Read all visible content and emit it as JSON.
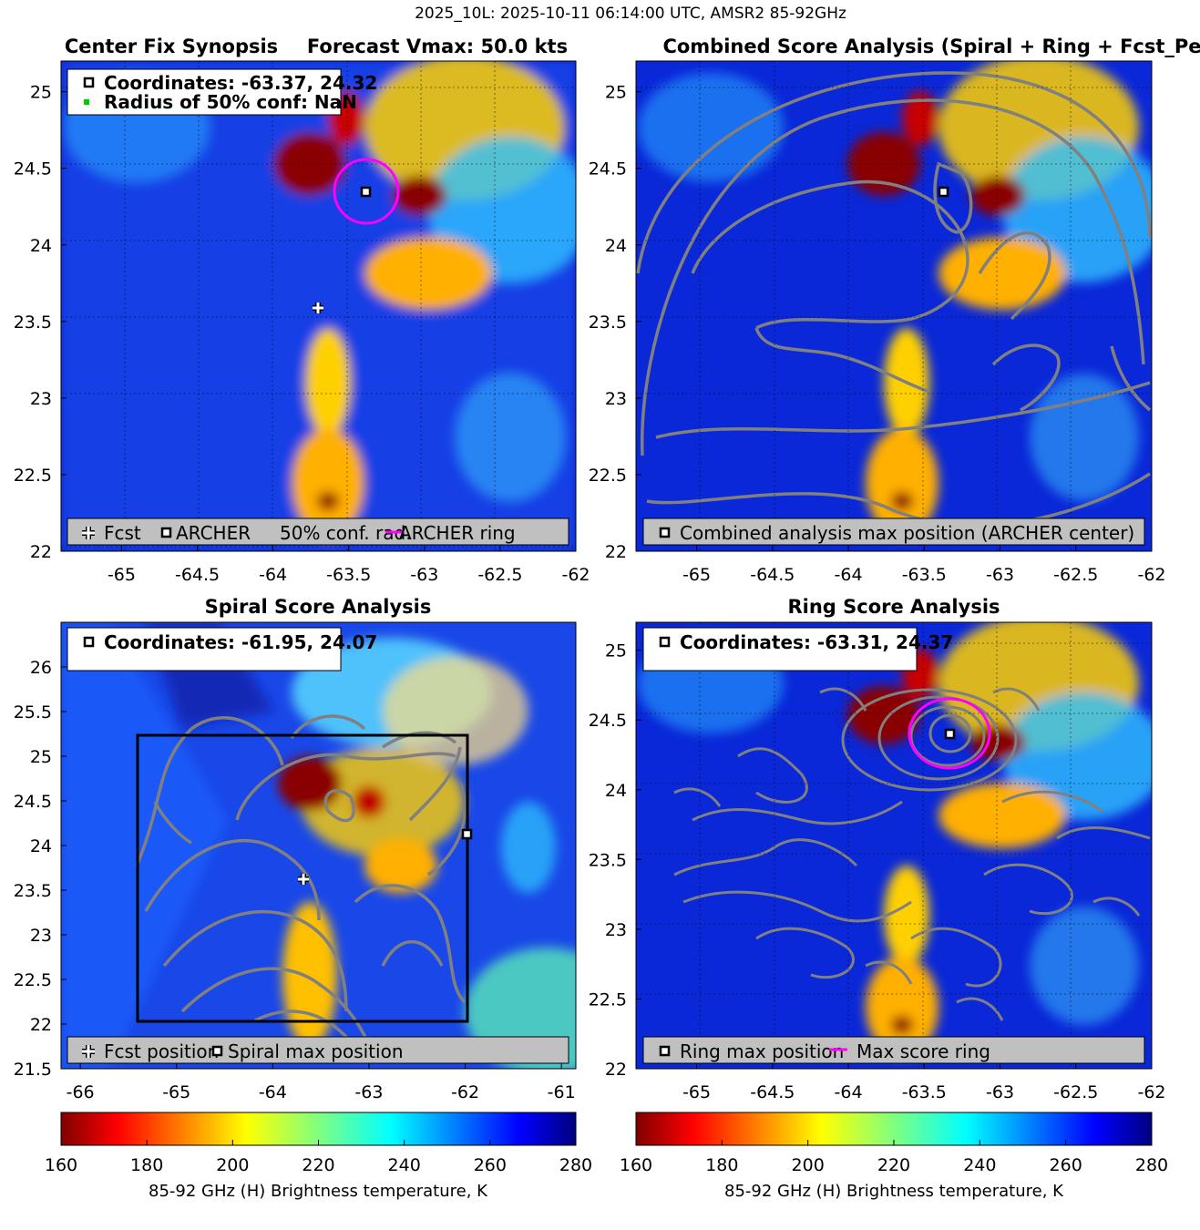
{
  "suptitle": "2025_10L: 2025-10-11 06:14:00 UTC, AMSR2 85-92GHz",
  "panels": [
    {
      "id": "synopsis",
      "title_left": "Center Fix Synopsis",
      "title_right": "Forecast Vmax: 50.0 kts",
      "info_lines": [
        "Coordinates: -63.37, 24.32",
        "Radius of 50% conf: NaN"
      ],
      "legend_items": [
        "Fcst",
        "ARCHER",
        "50% conf. rad.",
        "ARCHER ring"
      ],
      "xlim": [
        -65.4,
        -62.0
      ],
      "ylim": [
        22.0,
        25.2
      ],
      "xticks": [
        "-65",
        "-64.5",
        "-64",
        "-63.5",
        "-63",
        "-62.5",
        "-62"
      ],
      "yticks": [
        "22",
        "22.5",
        "23",
        "23.5",
        "24",
        "24.5",
        "25"
      ]
    },
    {
      "id": "combined",
      "title": "Combined Score Analysis (Spiral + Ring + Fcst_Pe",
      "legend_items": [
        "Combined analysis max position (ARCHER center)"
      ],
      "xlim": [
        -65.4,
        -62.0
      ],
      "ylim": [
        22.0,
        25.2
      ],
      "xticks": [
        "-65",
        "-64.5",
        "-64",
        "-63.5",
        "-63",
        "-62.5",
        "-62"
      ],
      "yticks": [
        "22",
        "22.5",
        "23",
        "23.5",
        "24",
        "24.5",
        "25"
      ]
    },
    {
      "id": "spiral",
      "title": "Spiral Score Analysis",
      "info_lines": [
        "Coordinates: -61.95, 24.07"
      ],
      "legend_items": [
        "Fcst position",
        "Spiral max position"
      ],
      "xlim": [
        -66.2,
        -60.85
      ],
      "ylim": [
        21.5,
        26.5
      ],
      "xticks": [
        "-66",
        "-65",
        "-64",
        "-63",
        "-62",
        "-61"
      ],
      "yticks": [
        "21.5",
        "22",
        "22.5",
        "23",
        "23.5",
        "24",
        "24.5",
        "25",
        "25.5",
        "26"
      ]
    },
    {
      "id": "ring",
      "title": "Ring Score Analysis",
      "info_lines": [
        "Coordinates: -63.31, 24.37"
      ],
      "legend_items": [
        "Ring max position",
        "Max score ring"
      ],
      "xlim": [
        -65.4,
        -62.0
      ],
      "ylim": [
        22.0,
        25.2
      ],
      "xticks": [
        "-65",
        "-64.5",
        "-64",
        "-63.5",
        "-63",
        "-62.5",
        "-62"
      ],
      "yticks": [
        "22",
        "22.5",
        "23",
        "23.5",
        "24",
        "24.5",
        "25"
      ]
    }
  ],
  "colorbar": {
    "label": "85-92 GHz (H) Brightness temperature, K",
    "ticks": [
      "160",
      "180",
      "200",
      "220",
      "240",
      "260",
      "280"
    ],
    "range": [
      160,
      280
    ],
    "colormap": "jet-reversed"
  },
  "chart_data": [
    {
      "type": "heatmap",
      "panel": "synopsis",
      "value_range_K": [
        160,
        280
      ],
      "points": [
        {
          "name": "Fcst",
          "lon": -63.7,
          "lat": 23.56
        },
        {
          "name": "ARCHER",
          "lon": -63.37,
          "lat": 24.32
        }
      ],
      "ring": {
        "center_lon": -63.37,
        "center_lat": 24.32,
        "radius_deg": 0.22
      }
    },
    {
      "type": "heatmap",
      "panel": "combined",
      "points": [
        {
          "name": "Combined analysis max position (ARCHER center)",
          "lon": -63.37,
          "lat": 24.32
        }
      ]
    },
    {
      "type": "heatmap",
      "panel": "spiral",
      "points": [
        {
          "name": "Fcst position",
          "lon": -63.7,
          "lat": 23.56
        },
        {
          "name": "Spiral max position",
          "lon": -61.95,
          "lat": 24.07
        }
      ],
      "box": {
        "lon": [
          -65.4,
          -61.95
        ],
        "lat": [
          21.99,
          25.17
        ]
      }
    },
    {
      "type": "heatmap",
      "panel": "ring",
      "points": [
        {
          "name": "Ring max position",
          "lon": -63.31,
          "lat": 24.37
        }
      ],
      "ring": {
        "center_lon": -63.31,
        "center_lat": 24.37,
        "radius_deg": 0.27
      }
    }
  ],
  "colors": {
    "contour": "#808080",
    "ring": "#ff00ff",
    "conf_marker": "#00cc00",
    "legend_bg": "#c0c0c0"
  }
}
